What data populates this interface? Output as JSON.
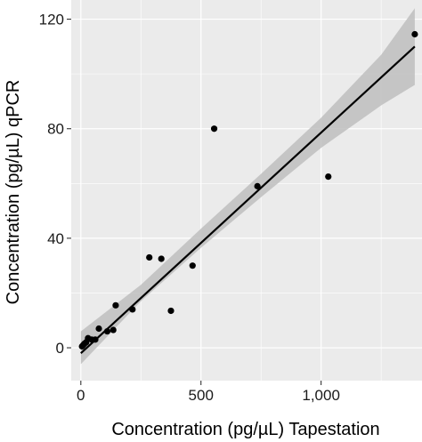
{
  "chart_data": {
    "type": "scatter",
    "xlabel": "Concentration (pg/µL) Tapestation",
    "ylabel": "Concentration (pg/µL) qPCR",
    "xlim": [
      -40,
      1420
    ],
    "ylim": [
      -12,
      127
    ],
    "x_ticks": [
      {
        "value": 0,
        "label": "0"
      },
      {
        "value": 500,
        "label": "500"
      },
      {
        "value": 1000,
        "label": "1,000"
      }
    ],
    "y_ticks": [
      {
        "value": 0,
        "label": "0"
      },
      {
        "value": 40,
        "label": "40"
      },
      {
        "value": 80,
        "label": "80"
      },
      {
        "value": 120,
        "label": "120"
      }
    ],
    "grid": true,
    "legend": "none",
    "points": [
      {
        "x": 5,
        "y": 0.5
      },
      {
        "x": 10,
        "y": 1
      },
      {
        "x": 15,
        "y": 1.5
      },
      {
        "x": 22,
        "y": 2
      },
      {
        "x": 30,
        "y": 3.5
      },
      {
        "x": 45,
        "y": 3
      },
      {
        "x": 60,
        "y": 3
      },
      {
        "x": 75,
        "y": 7
      },
      {
        "x": 110,
        "y": 6
      },
      {
        "x": 135,
        "y": 6.5
      },
      {
        "x": 145,
        "y": 15.5
      },
      {
        "x": 215,
        "y": 14
      },
      {
        "x": 285,
        "y": 33
      },
      {
        "x": 335,
        "y": 32.5
      },
      {
        "x": 375,
        "y": 13.5
      },
      {
        "x": 465,
        "y": 30
      },
      {
        "x": 555,
        "y": 80
      },
      {
        "x": 735,
        "y": 59
      },
      {
        "x": 1030,
        "y": 62.5
      },
      {
        "x": 1390,
        "y": 114.5
      }
    ],
    "fit_line": {
      "x": [
        0,
        1390
      ],
      "y": [
        -2,
        110
      ]
    },
    "confidence_band": {
      "x": [
        0,
        250,
        500,
        750,
        1000,
        1250,
        1390
      ],
      "lower": [
        -6,
        17,
        36.5,
        55,
        73,
        88.5,
        96
      ],
      "upper": [
        6,
        23,
        43.5,
        63.5,
        84,
        107,
        124
      ]
    },
    "colors": {
      "panel": "#ebebeb",
      "grid": "#ffffff",
      "band": "#bebebe",
      "line": "#000000",
      "points": "#000000"
    }
  }
}
